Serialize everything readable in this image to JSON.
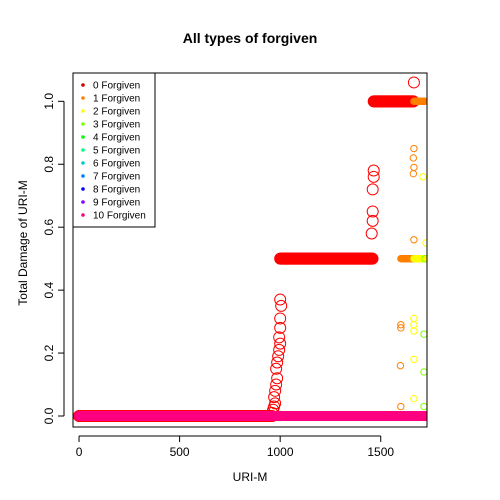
{
  "chart_data": {
    "type": "scatter",
    "title": "All types of forgiven",
    "xlabel": "URI-M",
    "ylabel": "Total Damage of URI-M",
    "xlim": [
      -30,
      1730
    ],
    "ylim": [
      -0.035,
      1.09
    ],
    "xticks": [
      0,
      500,
      1000,
      1500
    ],
    "yticks": [
      0.0,
      0.2,
      0.4,
      0.6,
      0.8,
      1.0
    ],
    "grid": false,
    "legend_position": "top-left",
    "series": [
      {
        "name": "0 Forgiven",
        "color": "#FF0000",
        "marker": "open-circle-large",
        "segments": [
          {
            "x": [
              0,
              960
            ],
            "y": 0.0
          },
          {
            "x": [
              1000,
              1460
            ],
            "y": 0.5
          },
          {
            "x": [
              1465,
              1665
            ],
            "y": 1.0
          }
        ],
        "points": [
          [
            960,
            0.01
          ],
          [
            965,
            0.02
          ],
          [
            970,
            0.03
          ],
          [
            975,
            0.04
          ],
          [
            970,
            0.06
          ],
          [
            975,
            0.08
          ],
          [
            980,
            0.1
          ],
          [
            985,
            0.12
          ],
          [
            980,
            0.15
          ],
          [
            985,
            0.17
          ],
          [
            990,
            0.19
          ],
          [
            995,
            0.21
          ],
          [
            1000,
            0.23
          ],
          [
            995,
            0.25
          ],
          [
            1000,
            0.28
          ],
          [
            1000,
            0.31
          ],
          [
            1005,
            0.35
          ],
          [
            1000,
            0.37
          ],
          [
            1455,
            0.58
          ],
          [
            1460,
            0.62
          ],
          [
            1460,
            0.65
          ],
          [
            1460,
            0.72
          ],
          [
            1465,
            0.76
          ],
          [
            1465,
            0.78
          ],
          [
            1665,
            1.06
          ]
        ]
      },
      {
        "name": "1 Forgiven",
        "color": "#FF8000",
        "marker": "open-circle",
        "segments": [
          {
            "x": [
              1600,
              1720
            ],
            "y": 0.5
          },
          {
            "x": [
              1665,
              1720
            ],
            "y": 1.0
          }
        ],
        "points": [
          [
            1600,
            0.29
          ],
          [
            1600,
            0.28
          ],
          [
            1598,
            0.16
          ],
          [
            1600,
            0.03
          ],
          [
            1665,
            0.85
          ],
          [
            1662,
            0.82
          ],
          [
            1665,
            0.79
          ],
          [
            1662,
            0.77
          ],
          [
            1665,
            0.56
          ]
        ]
      },
      {
        "name": "2 Forgiven",
        "color": "#FFFF00",
        "marker": "open-circle",
        "segments": [
          {
            "x": [
              1665,
              1725
            ],
            "y": 0.5
          }
        ],
        "points": [
          [
            1665,
            0.31
          ],
          [
            1665,
            0.29
          ],
          [
            1665,
            0.27
          ],
          [
            1665,
            0.18
          ],
          [
            1665,
            0.055
          ],
          [
            1710,
            0.76
          ],
          [
            1725,
            0.55
          ]
        ]
      },
      {
        "name": "3 Forgiven",
        "color": "#80FF00",
        "marker": "open-circle",
        "points": [
          [
            1715,
            0.26
          ],
          [
            1715,
            0.14
          ],
          [
            1715,
            0.03
          ],
          [
            1720,
            0.5
          ]
        ]
      },
      {
        "name": "4 Forgiven",
        "color": "#00FF00",
        "marker": "dot",
        "points": []
      },
      {
        "name": "5 Forgiven",
        "color": "#00FF80",
        "marker": "dot",
        "points": []
      },
      {
        "name": "6 Forgiven",
        "color": "#00FFFF",
        "marker": "dot",
        "points": []
      },
      {
        "name": "7 Forgiven",
        "color": "#0080FF",
        "marker": "dot",
        "points": []
      },
      {
        "name": "8 Forgiven",
        "color": "#0000FF",
        "marker": "dot",
        "points": []
      },
      {
        "name": "9 Forgiven",
        "color": "#8000FF",
        "marker": "dot",
        "points": []
      },
      {
        "name": "10 Forgiven",
        "color": "#FF0080",
        "marker": "filled-circle",
        "segments": [
          {
            "x": [
              0,
              1725
            ],
            "y": 0.0
          }
        ],
        "points": []
      }
    ],
    "legend_colors": [
      "#CC0000",
      "#FF8000",
      "#FFFF00",
      "#80FF00",
      "#00FF00",
      "#00FF80",
      "#00CCCC",
      "#0080FF",
      "#0000FF",
      "#8000FF",
      "#FF0080"
    ]
  }
}
